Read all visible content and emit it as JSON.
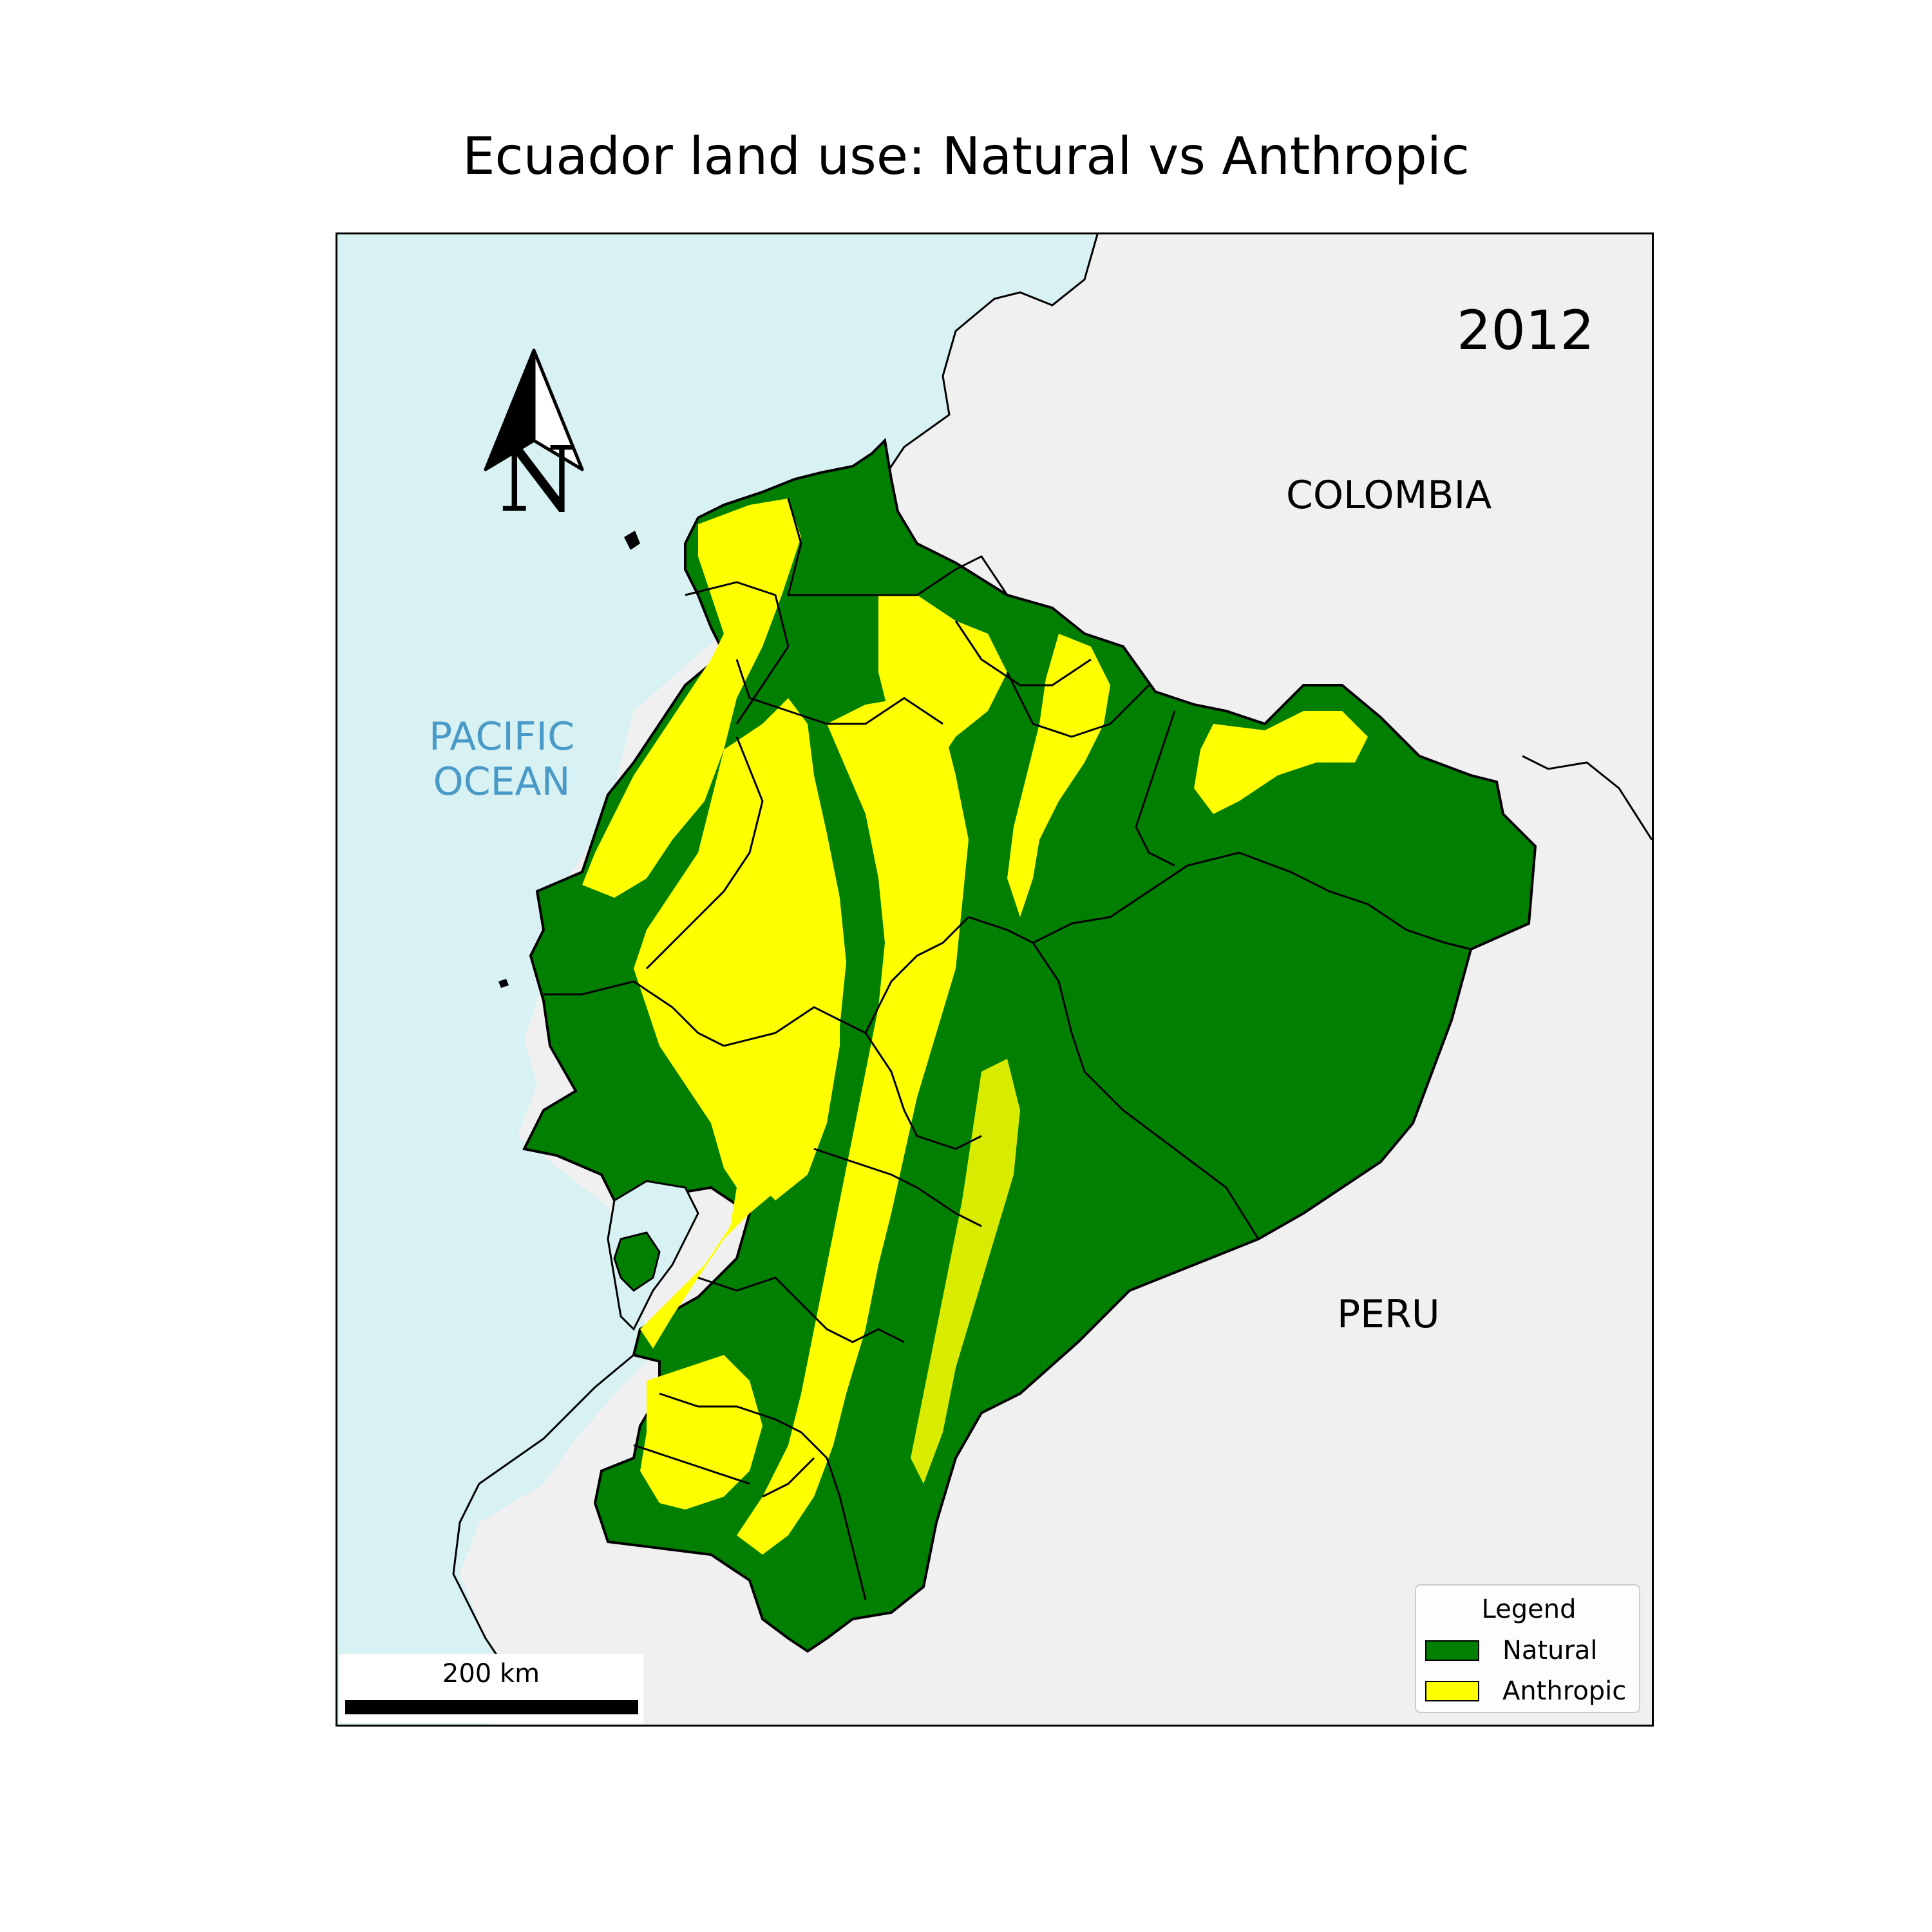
{
  "title": "Ecuador land use: Natural vs Anthropic",
  "year": "2012",
  "labels": {
    "colombia": "COLOMBIA",
    "peru": "PERU",
    "ocean_line1": "PACIFIC",
    "ocean_line2": "OCEAN"
  },
  "north_arrow": {
    "letter": "N"
  },
  "scale_bar": {
    "label": "200 km"
  },
  "legend": {
    "title": "Legend",
    "items": [
      {
        "label": "Natural",
        "color": "#007f00"
      },
      {
        "label": "Anthropic",
        "color": "#ffff00"
      }
    ]
  },
  "colors": {
    "ocean": "#d8f1f3",
    "land_other": "#f0f0f0",
    "natural": "#007f00",
    "anthropic": "#ffff00",
    "ocean_label": "#4a9ac8"
  }
}
